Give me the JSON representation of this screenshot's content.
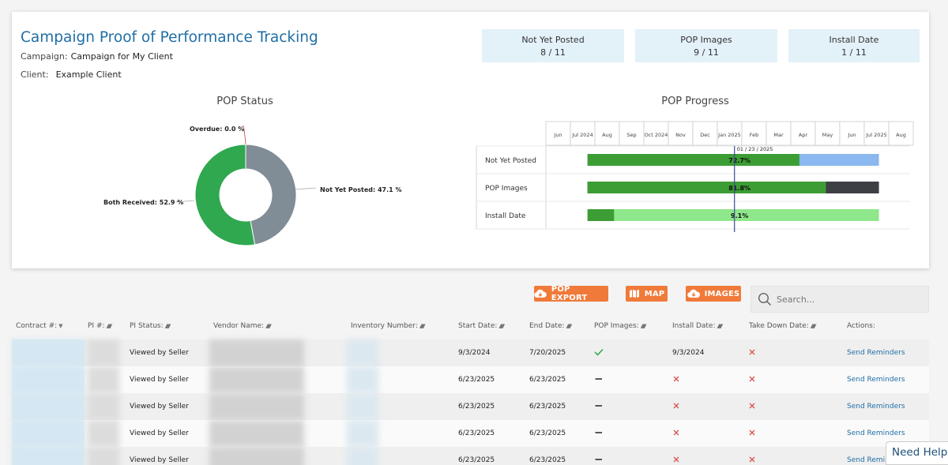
{
  "header": {
    "title": "Campaign Proof of Performance Tracking",
    "campaign_label": "Campaign:",
    "campaign_value": "Campaign for My Client",
    "client_label": "Client:",
    "client_value": "Example Client"
  },
  "stats": [
    {
      "label": "Not Yet Posted",
      "value": "8 / 11"
    },
    {
      "label": "POP Images",
      "value": "9 / 11"
    },
    {
      "label": "Install Date",
      "value": "1 / 11"
    }
  ],
  "colors": {
    "accent": "#1f6ea6",
    "orange": "#f07a3a",
    "green_dark": "#3c9d34",
    "green_light": "#8fe78b",
    "blue_light": "#8ab8ef",
    "gray_bar": "#3e3f44",
    "donut_gray": "#808c96",
    "donut_green": "#2fa84f"
  },
  "chart_data": [
    {
      "type": "pie",
      "title": "POP Status",
      "slices": [
        {
          "label": "Overdue: 0.0 %",
          "value": 0.0
        },
        {
          "label": "Not Yet Posted: 47.1 %",
          "value": 47.1
        },
        {
          "label": "Both Received: 52.9 %",
          "value": 52.9
        }
      ]
    },
    {
      "type": "bar",
      "title": "POP Progress",
      "months": [
        "Jun",
        "Jul 2024",
        "Aug",
        "Sep",
        "Oct 2024",
        "Nov",
        "Dec",
        "Jan 2025",
        "Feb",
        "Mar",
        "Apr",
        "May",
        "Jun",
        "Jul 2025",
        "Aug"
      ],
      "today_label": "01 / 23 / 2025",
      "today": 7.7,
      "start": 1.7,
      "end": 13.6,
      "rows": [
        {
          "name": "Not Yet Posted",
          "percent": 72.7,
          "label": "72.7%"
        },
        {
          "name": "POP Images",
          "percent": 81.8,
          "label": "81.8%"
        },
        {
          "name": "Install Date",
          "percent": 9.1,
          "label": "9.1%"
        }
      ]
    }
  ],
  "toolbar": {
    "export_label": "POP EXPORT",
    "map_label": "MAP",
    "images_label": "IMAGES",
    "search_placeholder": "Search..."
  },
  "table": {
    "headers": [
      "Contract #:",
      "PI #:",
      "PI Status:",
      "Vendor Name:",
      "Inventory Number:",
      "Start Date:",
      "End Date:",
      "POP Images:",
      "Install Date:",
      "Take Down Date:",
      "Actions:"
    ],
    "rows": [
      {
        "status": "Viewed by Seller",
        "start": "9/3/2024",
        "end": "7/20/2025",
        "pop": "check",
        "install": "9/3/2024",
        "takedown": "x",
        "action": "Send Reminders"
      },
      {
        "status": "Viewed by Seller",
        "start": "6/23/2025",
        "end": "6/23/2025",
        "pop": "dash",
        "install": "x",
        "takedown": "x",
        "action": "Send Reminders"
      },
      {
        "status": "Viewed by Seller",
        "start": "6/23/2025",
        "end": "6/23/2025",
        "pop": "dash",
        "install": "x",
        "takedown": "x",
        "action": "Send Reminders"
      },
      {
        "status": "Viewed by Seller",
        "start": "6/23/2025",
        "end": "6/23/2025",
        "pop": "dash",
        "install": "x",
        "takedown": "x",
        "action": "Send Reminders"
      },
      {
        "status": "Viewed by Seller",
        "start": "6/23/2025",
        "end": "6/23/2025",
        "pop": "dash",
        "install": "x",
        "takedown": "x",
        "action": "Send Reminders"
      }
    ]
  },
  "help_label": "Need Help?"
}
